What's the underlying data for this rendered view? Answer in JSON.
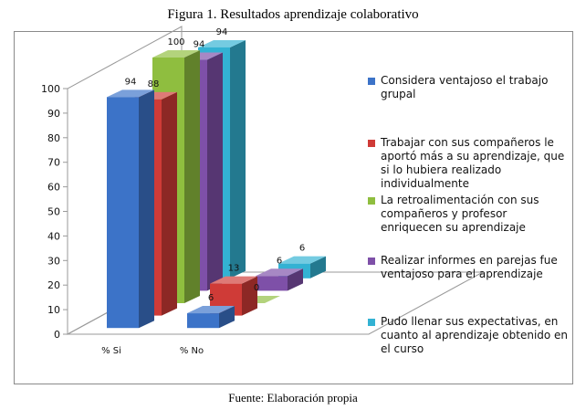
{
  "figure": {
    "title": "Figura 1. Resultados aprendizaje colaborativo",
    "source": "Fuente: Elaboración propia"
  },
  "chart_data": {
    "type": "bar",
    "style": "3d-column",
    "categories": [
      "% Si",
      "% No"
    ],
    "series": [
      {
        "name": "Considera ventajoso el trabajo grupal",
        "values": [
          94,
          6
        ],
        "color": "#3c73c8"
      },
      {
        "name": "Trabajar con sus compañeros le aportó más a su aprendizaje, que si lo hubiera realizado individualmente",
        "values": [
          88,
          13
        ],
        "color": "#cf3b37"
      },
      {
        "name": "La retroalimentación con sus compañeros y profesor enriquecen su aprendizaje",
        "values": [
          100,
          0
        ],
        "color": "#8fbe3f"
      },
      {
        "name": "Realizar informes en parejas fue ventajoso para el aprendizaje",
        "values": [
          94,
          6
        ],
        "color": "#7e50a8"
      },
      {
        "name": "Pudo llenar sus expectativas, en cuanto al aprendizaje obtenido en el curso",
        "values": [
          94,
          6
        ],
        "color": "#33b2d3"
      }
    ],
    "yticks": [
      0,
      10,
      20,
      30,
      40,
      50,
      60,
      70,
      80,
      90,
      100
    ],
    "ylim": [
      0,
      100
    ],
    "legend_position": "right",
    "grid": false
  }
}
